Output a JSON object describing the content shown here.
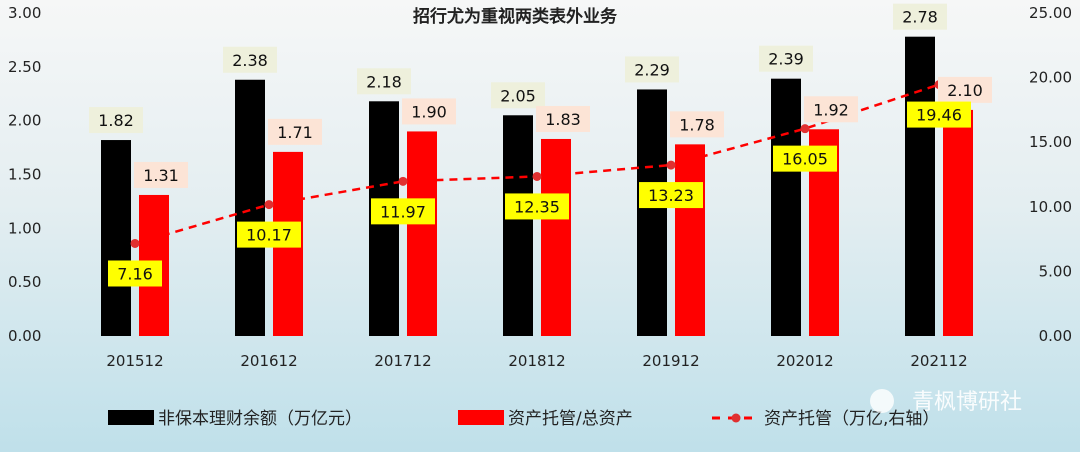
{
  "chart_data": {
    "type": "bar",
    "title": "招行尤为重视两类表外业务",
    "categories": [
      "201512",
      "201612",
      "201712",
      "201812",
      "201912",
      "202012",
      "202112"
    ],
    "series": [
      {
        "name": "非保本理财余额（万亿元）",
        "type": "bar",
        "axis": "left",
        "color": "#000000",
        "label_bg": "#eef0dc",
        "values": [
          1.82,
          2.38,
          2.18,
          2.05,
          2.29,
          2.39,
          2.78
        ]
      },
      {
        "name": "资产托管/总资产",
        "type": "bar",
        "axis": "left",
        "color": "#ff0000",
        "label_bg": "#fce4d6",
        "values": [
          1.31,
          1.71,
          1.9,
          1.83,
          1.78,
          1.92,
          2.1
        ]
      },
      {
        "name": "资产托管（万亿,右轴）",
        "type": "line",
        "style": "dashed",
        "axis": "right",
        "color": "#ff0000",
        "label_bg": "#ffff00",
        "values": [
          7.16,
          10.17,
          11.97,
          12.35,
          13.23,
          16.05,
          19.46
        ]
      }
    ],
    "left_axis": {
      "ylim": [
        0,
        3
      ],
      "ticks": [
        "0.00",
        "0.50",
        "1.00",
        "1.50",
        "2.00",
        "2.50",
        "3.00"
      ]
    },
    "right_axis": {
      "ylim": [
        0,
        25
      ],
      "ticks": [
        "0.00",
        "5.00",
        "10.00",
        "15.00",
        "20.00",
        "25.00"
      ]
    },
    "grid": false,
    "legend": "bottom"
  },
  "watermark": "青枫博研社"
}
